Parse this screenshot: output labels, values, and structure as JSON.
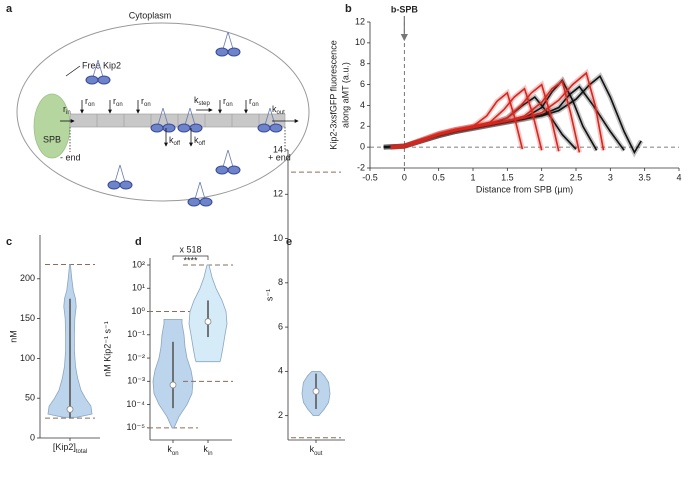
{
  "panel_labels": [
    "a",
    "b",
    "c",
    "d",
    "e"
  ],
  "diagram": {
    "cytoplasm": "Cytoplasm",
    "free_kip2": "Free Kip2",
    "spb": "SPB",
    "minus_end": "- end",
    "plus_end": "+ end",
    "rates": [
      {
        "text": "r",
        "sub": "in"
      },
      {
        "text": "r",
        "sub": "on"
      },
      {
        "text": "r",
        "sub": "on"
      },
      {
        "text": "r",
        "sub": "on"
      },
      {
        "text": "k",
        "sub": "step"
      },
      {
        "text": "r",
        "sub": "on"
      },
      {
        "text": "r",
        "sub": "on"
      },
      {
        "text": "k",
        "sub": "off"
      },
      {
        "text": "k",
        "sub": "off"
      },
      {
        "text": "k",
        "sub": "out"
      }
    ]
  },
  "chart_data": [
    {
      "type": "line",
      "xlabel": "Distance from SPB (µm)",
      "ylabel": [
        "Kip2-3xsfGFP fluorescence",
        "along aMT (a.u.)"
      ],
      "annotation": "b-SPB",
      "xlim": [
        -0.5,
        4
      ],
      "xticks": [
        -0.5,
        0,
        0.5,
        1,
        1.5,
        2,
        2.5,
        3,
        3.5,
        4
      ],
      "ylim": [
        -2,
        12
      ],
      "yticks": [
        -2,
        0,
        2,
        4,
        6,
        8,
        10,
        12
      ],
      "hlines": [
        0
      ],
      "vlines": [
        0
      ],
      "series": [
        {
          "color": "#111111",
          "x": [
            -0.3,
            0,
            0.25,
            0.5,
            0.75,
            1,
            1.25,
            1.5,
            1.7,
            1.9,
            2.1,
            2.3,
            2.5
          ],
          "values": [
            0,
            0.1,
            0.6,
            1.1,
            1.5,
            1.9,
            2.2,
            2.8,
            3.9,
            4.8,
            3.2,
            1.2,
            -0.2
          ]
        },
        {
          "color": "#111111",
          "x": [
            -0.3,
            0,
            0.25,
            0.5,
            0.75,
            1,
            1.25,
            1.5,
            1.75,
            2,
            2.15,
            2.3,
            2.45,
            2.6,
            2.8
          ],
          "values": [
            0,
            0.1,
            0.6,
            1.1,
            1.5,
            1.8,
            2.1,
            2.4,
            2.8,
            3.8,
            5.3,
            6.4,
            4.5,
            2,
            -0.3
          ]
        },
        {
          "color": "#111111",
          "x": [
            -0.3,
            0,
            0.25,
            0.5,
            0.75,
            1,
            1.25,
            1.5,
            1.75,
            2,
            2.25,
            2.4,
            2.55,
            2.75,
            3,
            3.2
          ],
          "values": [
            0,
            0.1,
            0.6,
            1.1,
            1.5,
            1.8,
            2.1,
            2.4,
            2.7,
            3.1,
            3.8,
            5,
            5.8,
            4,
            1.5,
            -0.3
          ]
        },
        {
          "color": "#111111",
          "x": [
            -0.3,
            0,
            0.25,
            0.5,
            0.75,
            1,
            1.25,
            1.5,
            1.75,
            2,
            2.25,
            2.5,
            2.7,
            2.85,
            3,
            3.2,
            3.35,
            3.45
          ],
          "values": [
            0,
            0.1,
            0.6,
            1.1,
            1.5,
            1.8,
            2.1,
            2.4,
            2.7,
            3,
            3.5,
            4.6,
            6,
            6.8,
            4.8,
            1.5,
            -0.5,
            0.6
          ]
        },
        {
          "color": "#d7261e",
          "x": [
            -0.2,
            0,
            0.25,
            0.5,
            0.75,
            1,
            1.2,
            1.35,
            1.5,
            1.6,
            1.72
          ],
          "values": [
            0,
            0.1,
            0.7,
            1.3,
            1.7,
            2,
            3,
            4.4,
            5.2,
            3,
            -0.2
          ]
        },
        {
          "color": "#d7261e",
          "x": [
            -0.2,
            0,
            0.25,
            0.5,
            0.75,
            1,
            1.25,
            1.45,
            1.6,
            1.75,
            1.87,
            2
          ],
          "values": [
            0,
            0.1,
            0.7,
            1.3,
            1.7,
            2,
            2.4,
            3.6,
            4.8,
            5.6,
            3.2,
            -0.3
          ]
        },
        {
          "color": "#d7261e",
          "x": [
            -0.2,
            0,
            0.25,
            0.5,
            0.75,
            1,
            1.25,
            1.5,
            1.7,
            1.85,
            2,
            2.12,
            2.25
          ],
          "values": [
            0,
            0.1,
            0.7,
            1.3,
            1.7,
            2,
            2.3,
            2.8,
            4,
            5.2,
            6,
            3.3,
            -0.4
          ]
        },
        {
          "color": "#d7261e",
          "x": [
            -0.2,
            0,
            0.25,
            0.5,
            0.75,
            1,
            1.25,
            1.5,
            1.75,
            2,
            2.15,
            2.3,
            2.42,
            2.55
          ],
          "values": [
            0,
            0.1,
            0.6,
            1.2,
            1.6,
            1.9,
            2.2,
            2.5,
            3,
            4.3,
            5.6,
            6.3,
            3.3,
            -0.5
          ]
        },
        {
          "color": "#d7261e",
          "x": [
            -0.2,
            0,
            0.25,
            0.5,
            0.75,
            1,
            1.25,
            1.5,
            1.75,
            2,
            2.25,
            2.45,
            2.65,
            2.78,
            2.9
          ],
          "values": [
            0,
            0.1,
            0.6,
            1.2,
            1.6,
            1.9,
            2.2,
            2.5,
            2.8,
            3.3,
            4.5,
            6,
            7.1,
            4,
            -0.3
          ]
        }
      ]
    },
    {
      "type": "violin",
      "ylabel": "nM",
      "ylim": [
        0,
        255
      ],
      "yticks": [
        0,
        50,
        100,
        150,
        200
      ],
      "categories": [
        {
          "text": "[Kip2]",
          "sub": "total"
        }
      ],
      "violins": [
        {
          "color": "#bcd5ec",
          "density_y": [
            26,
            30,
            40,
            50,
            60,
            75,
            90,
            110,
            130,
            150,
            165,
            175,
            185,
            200,
            218
          ],
          "density": [
            0.3,
            1,
            0.95,
            0.7,
            0.5,
            0.35,
            0.25,
            0.2,
            0.2,
            0.22,
            0.28,
            0.25,
            0.15,
            0.08,
            0.02
          ],
          "median": 36,
          "whisker": [
            25,
            175
          ],
          "bounds": [
            25,
            218
          ]
        }
      ]
    },
    {
      "type": "violin",
      "log_scale": true,
      "ylabel": "nM Kip2⁻¹ s⁻¹",
      "ylim": [
        3e-06,
        200
      ],
      "yticks": [
        {
          "value": 1e-05,
          "label": "10⁻⁵"
        },
        {
          "value": 0.0001,
          "label": "10⁻⁴"
        },
        {
          "value": 0.001,
          "label": "10⁻³"
        },
        {
          "value": 0.01,
          "label": "10⁻²"
        },
        {
          "value": 0.1,
          "label": "10⁻¹"
        },
        {
          "value": 1,
          "label": "10⁰"
        },
        {
          "value": 10,
          "label": "10¹"
        },
        {
          "value": 100,
          "label": "10²"
        }
      ],
      "annotation": {
        "fold": "x 518",
        "significance": "****"
      },
      "categories": [
        {
          "text": "k",
          "sub": "on"
        },
        {
          "text": "k",
          "sub": "in"
        }
      ],
      "violins": [
        {
          "color": "#bcd5ec",
          "density_y": [
            1e-05,
            3e-05,
            0.0001,
            0.0003,
            0.001,
            0.003,
            0.01,
            0.03,
            0.1,
            0.3,
            0.46
          ],
          "density": [
            0.05,
            0.3,
            0.7,
            0.95,
            1,
            0.9,
            0.7,
            0.6,
            0.55,
            0.45,
            0.45
          ],
          "median": 0.0007,
          "whisker": [
            7e-05,
            0.05
          ],
          "bounds": [
            1e-05,
            1
          ]
        },
        {
          "color": "#d5ebf7",
          "density_y": [
            0.007,
            0.01,
            0.03,
            0.1,
            0.3,
            1,
            3,
            10,
            30,
            100
          ],
          "density": [
            0.6,
            0.65,
            0.75,
            0.85,
            0.95,
            0.9,
            0.7,
            0.4,
            0.2,
            0.05
          ],
          "median": 0.37,
          "whisker": [
            0.08,
            3
          ],
          "bounds": [
            0.001,
            100
          ]
        }
      ]
    },
    {
      "type": "violin",
      "ylabel": "s⁻¹",
      "ylim": [
        0.9,
        14
      ],
      "yticks": [
        2,
        4,
        6,
        8,
        10,
        12,
        14
      ],
      "categories": [
        {
          "text": "k",
          "sub": "out"
        }
      ],
      "violins": [
        {
          "color": "#bcd5ec",
          "density_y": [
            2,
            2.3,
            2.6,
            3,
            3.5,
            3.8,
            4
          ],
          "density": [
            0.2,
            0.6,
            0.9,
            1,
            0.9,
            0.6,
            0.3
          ],
          "median": 3.1,
          "whisker": [
            2.3,
            3.9
          ],
          "bounds": [
            1,
            13
          ]
        }
      ]
    }
  ]
}
